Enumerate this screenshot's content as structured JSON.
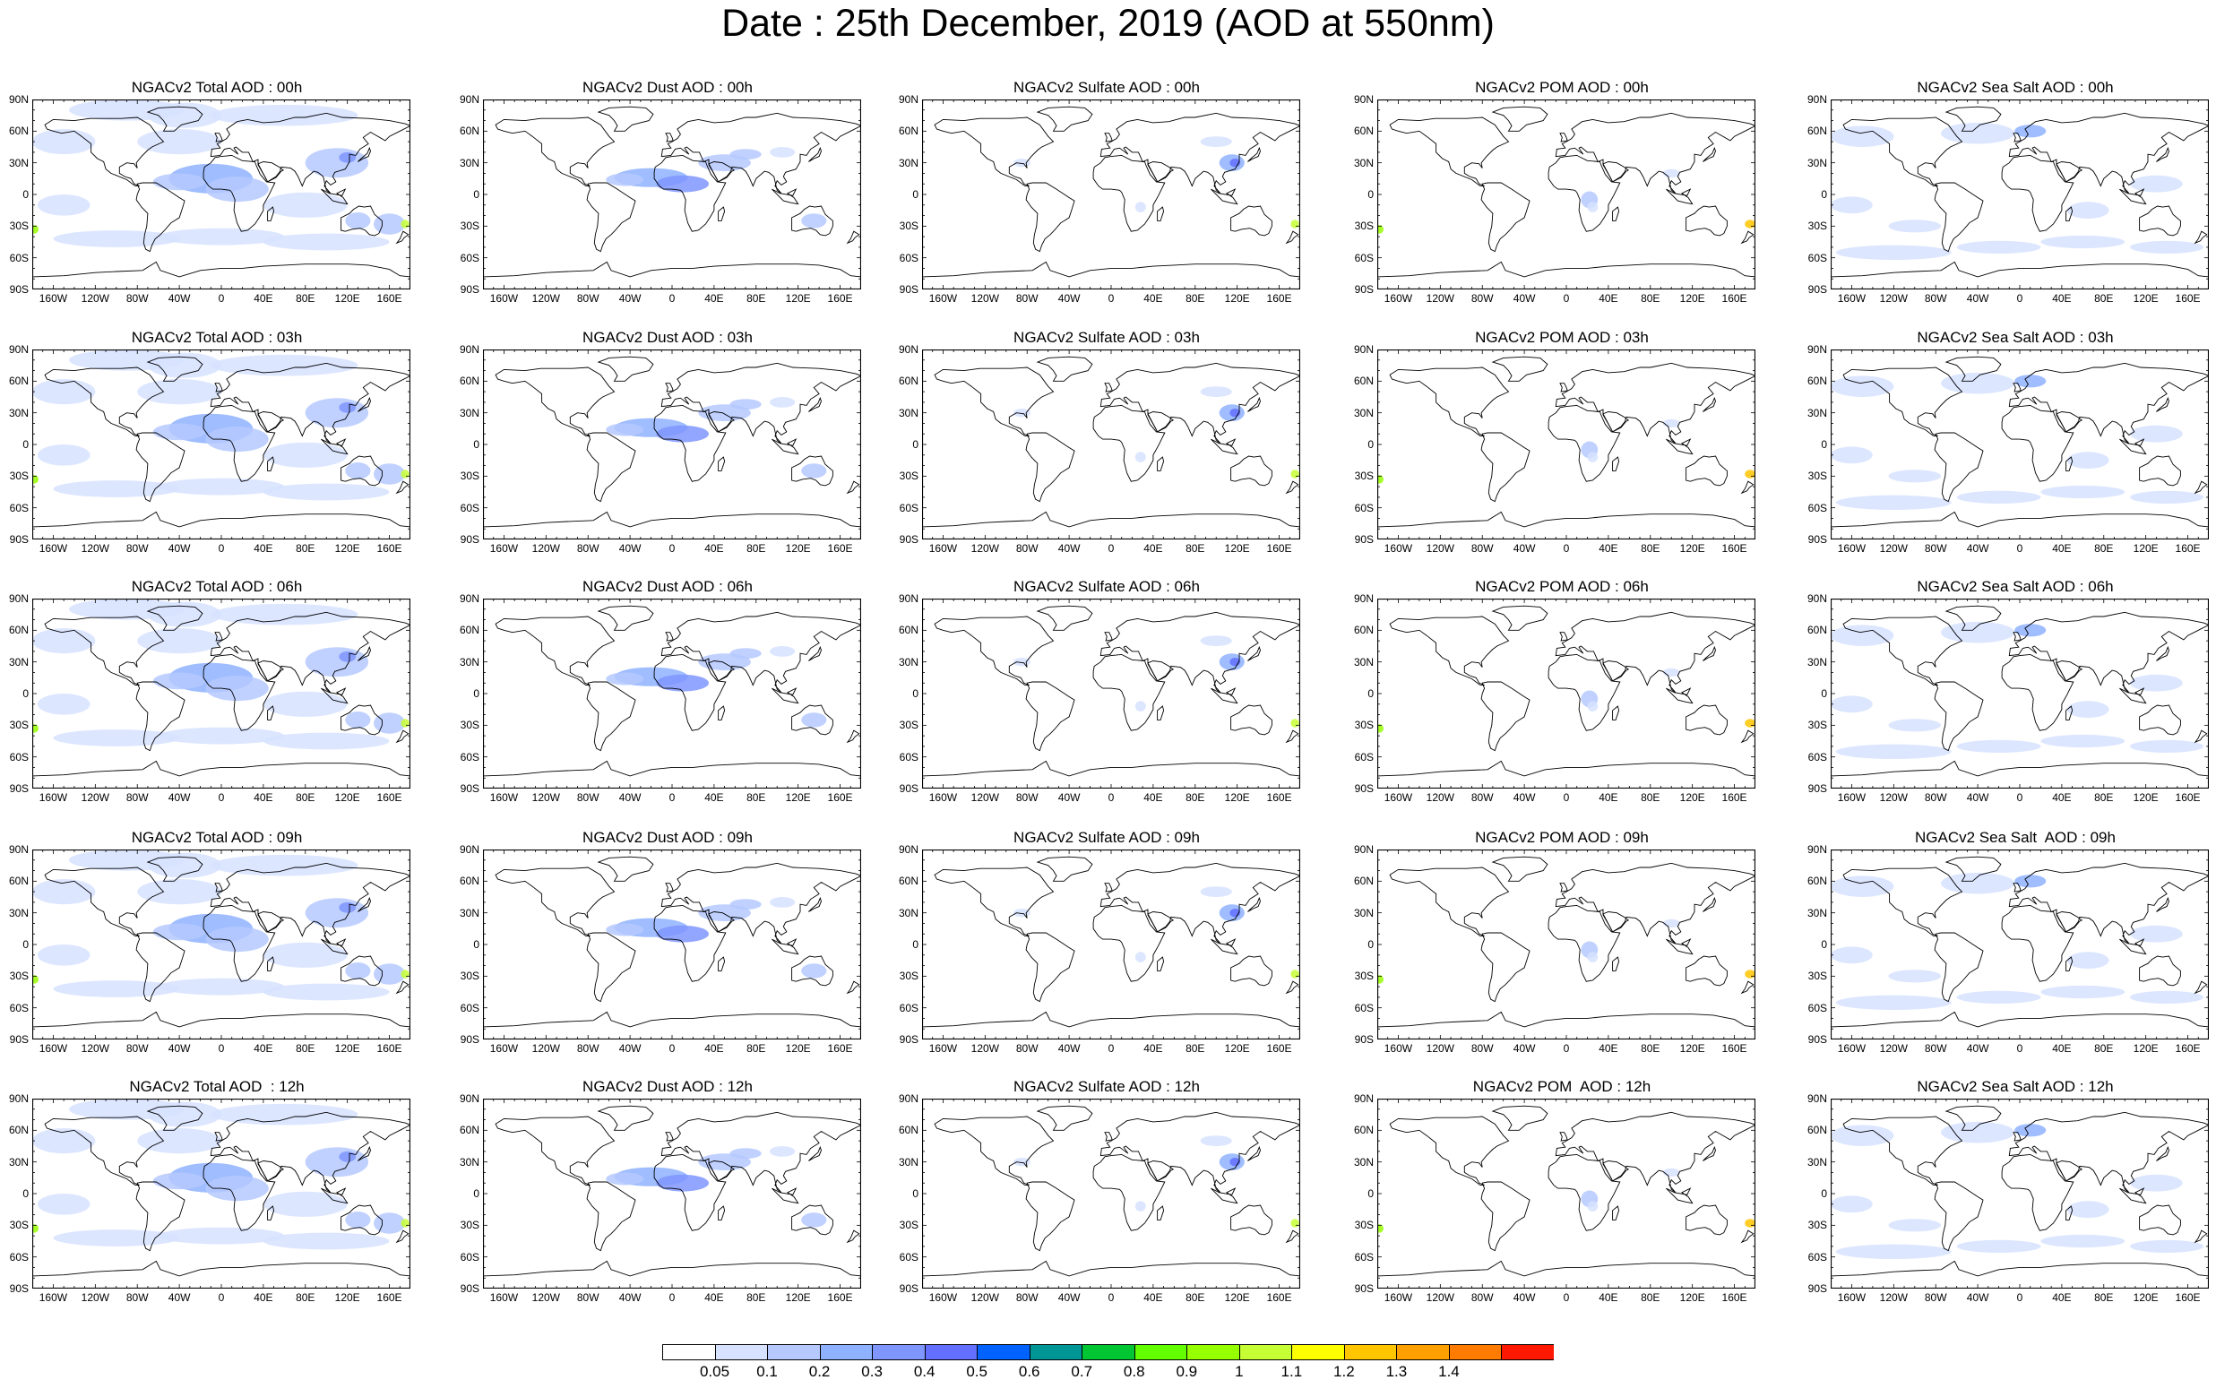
{
  "title": "Date : 25th December, 2019 (AOD at 550nm)",
  "lat_labels": [
    "90N",
    "60N",
    "30N",
    "0",
    "30S",
    "60S",
    "90S"
  ],
  "lon_labels": [
    "160W",
    "120W",
    "80W",
    "40W",
    "0",
    "40E",
    "80E",
    "120E",
    "160E"
  ],
  "columns": [
    "Total",
    "Dust",
    "Sulfate",
    "POM",
    "Sea Salt"
  ],
  "panel_titles": [
    [
      "NGACv2 Total AOD : 00h",
      "NGACv2 Dust AOD : 00h",
      "NGACv2 Sulfate AOD : 00h",
      "NGACv2 POM AOD : 00h",
      "NGACv2 Sea Salt AOD : 00h"
    ],
    [
      "NGACv2 Total AOD : 03h",
      "NGACv2 Dust AOD : 03h",
      "NGACv2 Sulfate AOD : 03h",
      "NGACv2 POM AOD : 03h",
      "NGACv2 Sea Salt AOD : 03h"
    ],
    [
      "NGACv2 Total AOD : 06h",
      "NGACv2 Dust AOD : 06h",
      "NGACv2 Sulfate AOD : 06h",
      "NGACv2 POM AOD : 06h",
      "NGACv2 Sea Salt AOD : 06h"
    ],
    [
      "NGACv2 Total AOD : 09h",
      "NGACv2 Dust AOD : 09h",
      "NGACv2 Sulfate AOD : 09h",
      "NGACv2 POM AOD : 09h",
      "NGACv2 Sea Salt  AOD : 09h"
    ],
    [
      "NGACv2 Total AOD  : 12h",
      "NGACv2 Dust AOD : 12h",
      "NGACv2 Sulfate AOD : 12h",
      "NGACv2 POM  AOD : 12h",
      "NGACv2 Sea Salt AOD : 12h"
    ]
  ],
  "colorbar": {
    "colors": [
      "#ffffff",
      "#d6e2ff",
      "#b5c9ff",
      "#8eb2ff",
      "#7f96ff",
      "#6370ff",
      "#0063ff",
      "#009696",
      "#00c633",
      "#63ff00",
      "#96ff00",
      "#c6ff33",
      "#ffff00",
      "#ffc600",
      "#ffa000",
      "#ff7c00",
      "#ff1900"
    ],
    "labels": [
      "0.05",
      "0.1",
      "0.2",
      "0.3",
      "0.4",
      "0.5",
      "0.6",
      "0.7",
      "0.8",
      "0.9",
      "1",
      "1.1",
      "1.2",
      "1.3",
      "1.4"
    ]
  }
}
